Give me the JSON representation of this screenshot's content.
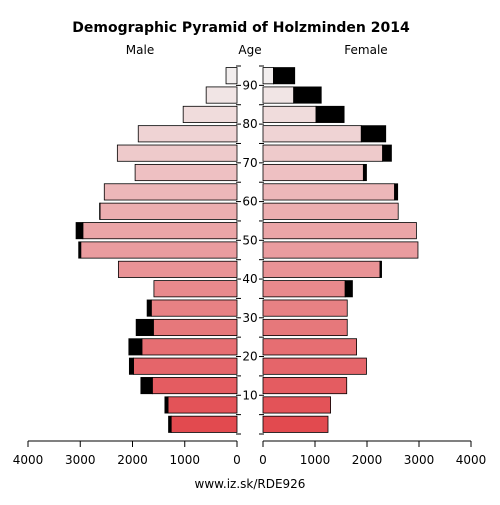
{
  "chart_data": {
    "type": "population_pyramid",
    "title": "Demographic Pyramid of Holzminden 2014",
    "left_label": "Male",
    "center_label": "Age",
    "right_label": "Female",
    "footer": "www.iz.sk/RDE926",
    "age_groups": [
      "0-4",
      "5-9",
      "10-14",
      "15-19",
      "20-24",
      "25-29",
      "30-34",
      "35-39",
      "40-44",
      "45-49",
      "50-54",
      "55-59",
      "60-64",
      "65-69",
      "70-74",
      "75-79",
      "80-84",
      "85-89",
      "90+"
    ],
    "age_tick_labels": [
      "10",
      "20",
      "30",
      "40",
      "50",
      "60",
      "70",
      "80",
      "90"
    ],
    "x_tick_labels": [
      "4000",
      "3000",
      "2000",
      "1000",
      "0",
      "0",
      "1000",
      "2000",
      "3000",
      "4000"
    ],
    "x_range": [
      0,
      4000
    ],
    "male": {
      "base": [
        1260,
        1320,
        1620,
        1980,
        1820,
        1600,
        1640,
        1590,
        2270,
        2990,
        2950,
        2620,
        2540,
        1950,
        2290,
        1890,
        1030,
        590,
        210
      ],
      "excess": [
        50,
        60,
        220,
        80,
        250,
        330,
        80,
        0,
        0,
        40,
        130,
        10,
        0,
        0,
        0,
        0,
        0,
        0,
        0
      ]
    },
    "female": {
      "base": [
        1250,
        1300,
        1610,
        1990,
        1800,
        1620,
        1620,
        1580,
        2250,
        2980,
        2950,
        2600,
        2530,
        1930,
        2300,
        1890,
        1020,
        590,
        200
      ],
      "excess": [
        0,
        0,
        0,
        0,
        0,
        0,
        0,
        140,
        30,
        0,
        0,
        0,
        60,
        60,
        170,
        470,
        540,
        530,
        410
      ]
    },
    "colors": {
      "bar_young": "#e24a4f",
      "bar_old": "#f2eeee",
      "excess": "#000000",
      "outline": "#000000"
    },
    "grid": false,
    "legend": "none"
  }
}
